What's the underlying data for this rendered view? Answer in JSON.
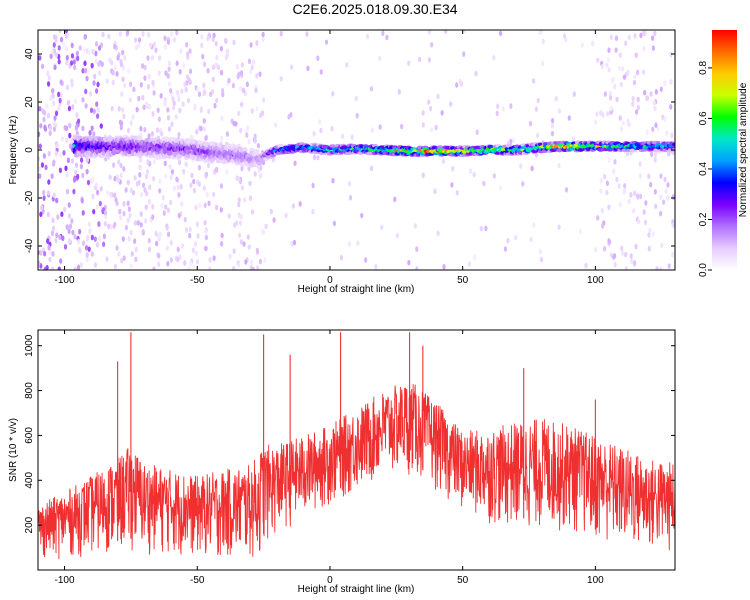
{
  "title": "C2E6.2025.018.09.30.E34",
  "chart_data": [
    {
      "type": "heatmap",
      "xlabel": "Height of straight line (km)",
      "ylabel": "Frequency (Hz)",
      "xlim": [
        -110,
        130
      ],
      "ylim": [
        -50,
        50
      ],
      "xticks": [
        -100,
        -50,
        0,
        50,
        100
      ],
      "yticks": [
        -40,
        -20,
        0,
        20,
        40
      ],
      "colorbar": {
        "label": "Normalized spectral amplitude",
        "range": [
          0.0,
          0.95
        ],
        "ticks": [
          0.0,
          0.2,
          0.4,
          0.6,
          0.8
        ],
        "tick_labels": [
          "0.0",
          "0.2",
          "0.4",
          "0.6",
          "0.8"
        ],
        "colormap": [
          "#ffffff",
          "#e6ccff",
          "#b070ff",
          "#7a00ff",
          "#0000ff",
          "#00a0ff",
          "#00e8c8",
          "#00ff00",
          "#c8ff00",
          "#ffcc00",
          "#ff6a00",
          "#ff0000"
        ]
      },
      "ridge": [
        {
          "x": -95,
          "y": 1.5,
          "amp": 0.35
        },
        {
          "x": -85,
          "y": 1.5,
          "amp": 0.3
        },
        {
          "x": -75,
          "y": 1.5,
          "amp": 0.28
        },
        {
          "x": -65,
          "y": 1.0,
          "amp": 0.25
        },
        {
          "x": -55,
          "y": 0.5,
          "amp": 0.25
        },
        {
          "x": -45,
          "y": -1.0,
          "amp": 0.22
        },
        {
          "x": -35,
          "y": -2.0,
          "amp": 0.2
        },
        {
          "x": -27,
          "y": -4.0,
          "amp": 0.15
        },
        {
          "x": -20,
          "y": 0.0,
          "amp": 0.45
        },
        {
          "x": -10,
          "y": 1.0,
          "amp": 0.5
        },
        {
          "x": 0,
          "y": 0.0,
          "amp": 0.55
        },
        {
          "x": 10,
          "y": 0.5,
          "amp": 0.6
        },
        {
          "x": 20,
          "y": 0.0,
          "amp": 0.7
        },
        {
          "x": 30,
          "y": -0.5,
          "amp": 0.85
        },
        {
          "x": 40,
          "y": -0.5,
          "amp": 0.9
        },
        {
          "x": 50,
          "y": -0.5,
          "amp": 0.75
        },
        {
          "x": 60,
          "y": 0.0,
          "amp": 0.7
        },
        {
          "x": 70,
          "y": 0.0,
          "amp": 0.65
        },
        {
          "x": 80,
          "y": 1.0,
          "amp": 0.7
        },
        {
          "x": 90,
          "y": 1.5,
          "amp": 0.9
        },
        {
          "x": 100,
          "y": 1.5,
          "amp": 0.7
        },
        {
          "x": 110,
          "y": 1.5,
          "amp": 0.6
        },
        {
          "x": 120,
          "y": 1.5,
          "amp": 0.55
        },
        {
          "x": 130,
          "y": 1.5,
          "amp": 0.5
        }
      ]
    },
    {
      "type": "line",
      "xlabel": "Height of straight line (km)",
      "ylabel": "SNR (10 * v/v)",
      "xlim": [
        -110,
        130
      ],
      "ylim": [
        0,
        1070
      ],
      "xticks": [
        -100,
        -50,
        0,
        50,
        100
      ],
      "yticks": [
        200,
        400,
        600,
        800,
        1000
      ],
      "color": "#f03030",
      "series": [
        {
          "x": [
            -110,
            -100,
            -90,
            -80,
            -75,
            -70,
            -60,
            -50,
            -40,
            -30,
            -27,
            -25,
            -20,
            -10,
            0,
            10,
            20,
            30,
            40,
            50,
            60,
            70,
            80,
            90,
            100,
            110,
            120,
            130
          ],
          "upper": [
            290,
            350,
            420,
            500,
            560,
            480,
            450,
            420,
            450,
            470,
            520,
            560,
            560,
            600,
            650,
            720,
            800,
            850,
            750,
            620,
            630,
            660,
            680,
            650,
            600,
            550,
            500,
            480
          ],
          "lower": [
            40,
            50,
            60,
            70,
            80,
            70,
            60,
            50,
            40,
            40,
            30,
            100,
            150,
            220,
            280,
            340,
            400,
            420,
            350,
            250,
            200,
            170,
            170,
            160,
            120,
            90,
            70,
            60
          ],
          "spikes": [
            {
              "x": -75,
              "y": 1060
            },
            {
              "x": -80,
              "y": 930
            },
            {
              "x": -25,
              "y": 1050
            },
            {
              "x": -15,
              "y": 960
            },
            {
              "x": 4,
              "y": 1060
            },
            {
              "x": 30,
              "y": 1060
            },
            {
              "x": 35,
              "y": 1000
            },
            {
              "x": 73,
              "y": 900
            },
            {
              "x": 100,
              "y": 760
            }
          ]
        }
      ]
    }
  ]
}
